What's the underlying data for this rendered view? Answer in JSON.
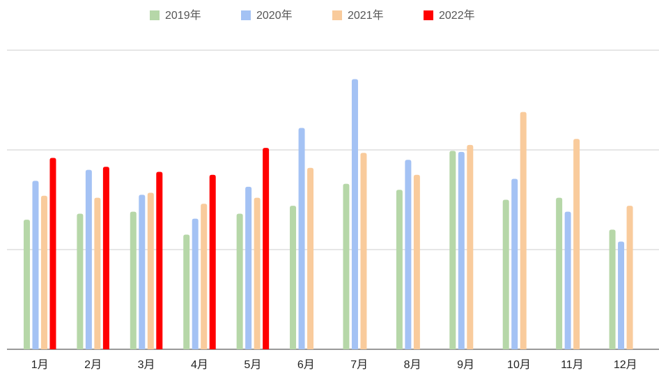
{
  "chart_data": {
    "type": "bar",
    "categories": [
      "1月",
      "2月",
      "3月",
      "4月",
      "5月",
      "6月",
      "7月",
      "8月",
      "9月",
      "10月",
      "11月",
      "12月"
    ],
    "series": [
      {
        "name": "2019年",
        "color": "#b6d7a8",
        "values": [
          1.3,
          1.36,
          1.38,
          1.15,
          1.36,
          1.44,
          1.66,
          1.6,
          1.99,
          1.5,
          1.52,
          1.2
        ]
      },
      {
        "name": "2020年",
        "color": "#a4c2f4",
        "values": [
          1.69,
          1.8,
          1.55,
          1.31,
          1.63,
          2.22,
          2.71,
          1.9,
          1.98,
          1.71,
          1.38,
          1.08
        ]
      },
      {
        "name": "2021年",
        "color": "#f9cb9c",
        "values": [
          1.54,
          1.52,
          1.57,
          1.46,
          1.52,
          1.82,
          1.97,
          1.75,
          2.05,
          2.38,
          2.11,
          1.44
        ]
      },
      {
        "name": "2022年",
        "color": "#ff0000",
        "values": [
          1.92,
          1.83,
          1.78,
          1.75,
          2.02,
          null,
          null,
          null,
          null,
          null,
          null,
          null
        ]
      }
    ],
    "ylim": [
      0,
      3
    ],
    "yticks": [
      0,
      1,
      2,
      3
    ],
    "grid": true,
    "legend": "top"
  }
}
